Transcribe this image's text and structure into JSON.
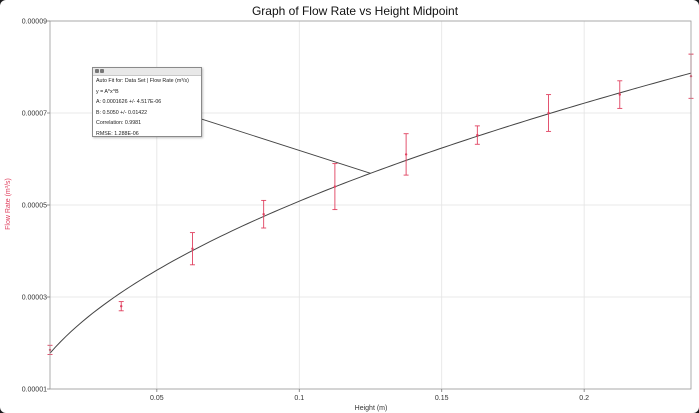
{
  "chart_data": {
    "type": "scatter",
    "title": "Graph of Flow Rate vs Height Midpoint",
    "xlabel": "Height (m)",
    "ylabel": "Flow Rate (m³/s)",
    "xlim": [
      0.0125,
      0.2375
    ],
    "ylim": [
      1e-05,
      9e-05
    ],
    "x_ticks": [
      0.05,
      0.1,
      0.15,
      0.2
    ],
    "x_tick_labels": [
      "0.05",
      "0.1",
      "0.15",
      "0.2"
    ],
    "y_ticks": [
      1e-05,
      3e-05,
      5e-05,
      7e-05,
      9e-05
    ],
    "y_tick_labels": [
      "0.00001",
      "0.00003",
      "0.00005",
      "0.00007",
      "0.00009"
    ],
    "grid": true,
    "series": [
      {
        "x": [
          0.0125,
          0.0375,
          0.0625,
          0.0875,
          0.1125,
          0.1375,
          0.1625,
          0.1875,
          0.2125,
          0.2375
        ],
        "y": [
          1.85e-05,
          2.8e-05,
          4.05e-05,
          4.8e-05,
          5.4e-05,
          6.1e-05,
          6.52e-05,
          7e-05,
          7.4e-05,
          7.8e-05
        ],
        "y_error": [
          1e-06,
          1e-06,
          3.5e-06,
          3e-06,
          5e-06,
          4.5e-06,
          2e-06,
          4e-06,
          3e-06,
          4.8e-06
        ],
        "color": "#e0405f"
      }
    ],
    "fit": {
      "model": "power",
      "A": 0.0001626,
      "B": 0.505,
      "color": "#444444",
      "annotation_anchor_x": 0.125
    },
    "annotation": {
      "lines": [
        "Auto Fit for: Data Set | Flow Rate (m³/s)",
        "y = A*x^B",
        "A: 0.0001626 +/- 4.517E-06",
        "B: 0.5050 +/- 0.01422",
        "Correlation: 0.9981",
        "RMSE: 1.288E-06"
      ]
    }
  }
}
